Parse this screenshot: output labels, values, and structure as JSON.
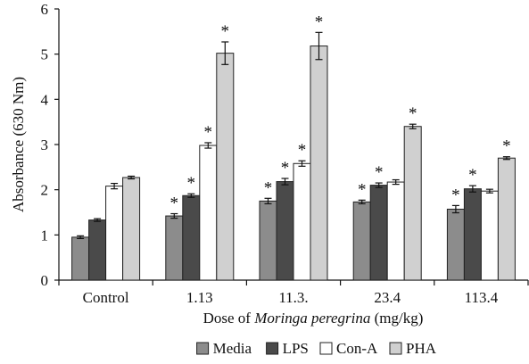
{
  "chart_data": {
    "type": "bar",
    "ylabel": "Absorbance (630 Nm)",
    "xlabel_prefix": "Dose of ",
    "xlabel_italic": "Moringa peregrina",
    "xlabel_suffix": " (mg/kg)",
    "ylim": [
      0,
      6
    ],
    "yticks": [
      "0",
      "1",
      "2",
      "3",
      "4",
      "5",
      "6"
    ],
    "categories": [
      "Control",
      "1.13",
      "11.3.",
      "23.4",
      "113.4"
    ],
    "legend_position": "bottom",
    "significance_marker": "*",
    "series": [
      {
        "name": "Media",
        "color": "#8c8c8c",
        "values": [
          0.95,
          1.42,
          1.75,
          1.73,
          1.57
        ],
        "errors": [
          0.03,
          0.05,
          0.06,
          0.04,
          0.08
        ],
        "significant": [
          false,
          true,
          true,
          true,
          true
        ]
      },
      {
        "name": "LPS",
        "color": "#4a4a4a",
        "values": [
          1.33,
          1.87,
          2.18,
          2.1,
          2.02
        ],
        "errors": [
          0.03,
          0.04,
          0.07,
          0.05,
          0.07
        ],
        "significant": [
          false,
          true,
          true,
          true,
          true
        ]
      },
      {
        "name": "Con-A",
        "color": "#ffffff",
        "values": [
          2.08,
          2.98,
          2.58,
          2.17,
          1.97
        ],
        "errors": [
          0.06,
          0.06,
          0.06,
          0.05,
          0.04
        ],
        "significant": [
          false,
          true,
          true,
          false,
          false
        ]
      },
      {
        "name": "PHA",
        "color": "#d0d0d0",
        "values": [
          2.27,
          5.02,
          5.18,
          3.4,
          2.7
        ],
        "errors": [
          0.03,
          0.25,
          0.3,
          0.05,
          0.03
        ],
        "significant": [
          false,
          true,
          true,
          true,
          true
        ]
      }
    ]
  }
}
